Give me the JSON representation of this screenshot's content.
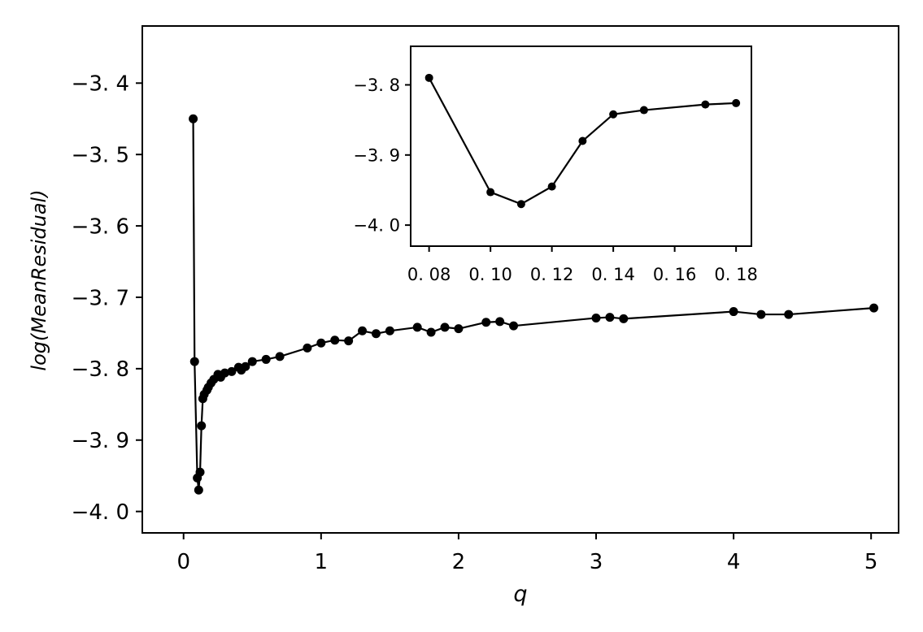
{
  "chart_data": [
    {
      "type": "line",
      "xlabel": "q",
      "ylabel": "log(MeanResidual)",
      "xlim": [
        -0.3,
        5.2
      ],
      "ylim": [
        -4.03,
        -3.32
      ],
      "xticks": [
        0,
        1,
        2,
        3,
        4,
        5
      ],
      "xtick_labels": [
        "0",
        "1",
        "2",
        "3",
        "4",
        "5"
      ],
      "yticks": [
        -3.4,
        -3.5,
        -3.6,
        -3.7,
        -3.8,
        -3.9,
        -4.0
      ],
      "ytick_labels": [
        "−3. 4",
        "−3. 5",
        "−3. 6",
        "−3. 7",
        "−3. 8",
        "−3. 9",
        "−4. 0"
      ],
      "grid": false,
      "line_color": "#000000",
      "series": [
        {
          "x": [
            0.07,
            0.08,
            0.1,
            0.11,
            0.12,
            0.13,
            0.14,
            0.15,
            0.17,
            0.18,
            0.2,
            0.22,
            0.25,
            0.27,
            0.3,
            0.35,
            0.4,
            0.42,
            0.45,
            0.5,
            0.6,
            0.7,
            0.9,
            1.0,
            1.1,
            1.2,
            1.3,
            1.4,
            1.5,
            1.7,
            1.8,
            1.9,
            2.0,
            2.2,
            2.3,
            2.4,
            3.0,
            3.1,
            3.2,
            4.0,
            4.2,
            4.4,
            5.02
          ],
          "y": [
            -3.45,
            -3.79,
            -3.953,
            -3.97,
            -3.945,
            -3.88,
            -3.842,
            -3.836,
            -3.83,
            -3.826,
            -3.82,
            -3.815,
            -3.808,
            -3.812,
            -3.806,
            -3.804,
            -3.798,
            -3.802,
            -3.797,
            -3.79,
            -3.787,
            -3.783,
            -3.771,
            -3.764,
            -3.76,
            -3.761,
            -3.747,
            -3.751,
            -3.747,
            -3.742,
            -3.749,
            -3.742,
            -3.744,
            -3.735,
            -3.734,
            -3.74,
            -3.729,
            -3.728,
            -3.73,
            -3.72,
            -3.724,
            -3.724,
            -3.715
          ]
        }
      ]
    },
    {
      "type": "line",
      "xlabel": "",
      "ylabel": "",
      "xlim": [
        0.074,
        0.185
      ],
      "ylim": [
        -4.03,
        -3.745
      ],
      "xticks": [
        0.08,
        0.1,
        0.12,
        0.14,
        0.16,
        0.18
      ],
      "xtick_labels": [
        "0. 08",
        "0. 10",
        "0. 12",
        "0. 14",
        "0. 16",
        "0. 18"
      ],
      "yticks": [
        -3.8,
        -3.9,
        -4.0
      ],
      "ytick_labels": [
        "−3. 8",
        "−3. 9",
        "−4. 0"
      ],
      "grid": false,
      "line_color": "#000000",
      "series": [
        {
          "x": [
            0.08,
            0.1,
            0.11,
            0.12,
            0.13,
            0.14,
            0.15,
            0.17,
            0.18
          ],
          "y": [
            -3.79,
            -3.953,
            -3.97,
            -3.945,
            -3.88,
            -3.842,
            -3.836,
            -3.828,
            -3.826
          ]
        }
      ]
    }
  ]
}
